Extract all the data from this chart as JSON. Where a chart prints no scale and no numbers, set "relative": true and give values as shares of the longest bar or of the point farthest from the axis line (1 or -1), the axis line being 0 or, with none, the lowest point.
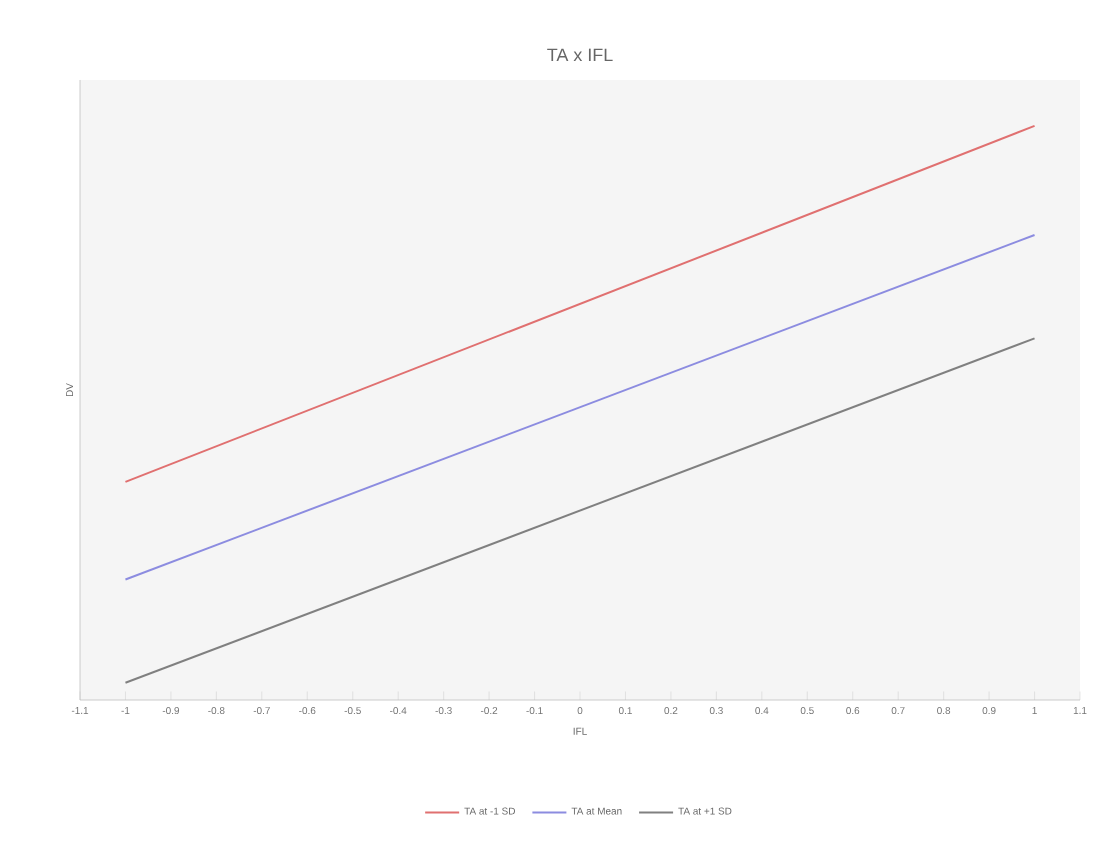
{
  "chart_data": {
    "type": "line",
    "title": "TA x IFL",
    "xlabel": "IFL",
    "ylabel": "DV",
    "relative": true,
    "x": [
      -1,
      1
    ],
    "xlim": [
      -1.1,
      1.1
    ],
    "xticks": [
      -1.1,
      -1,
      -0.9,
      -0.8,
      -0.7,
      -0.6,
      -0.5,
      -0.4,
      -0.3,
      -0.2,
      -0.1,
      0,
      0.1,
      0.2,
      0.3,
      0.4,
      0.5,
      0.6,
      0.7,
      0.8,
      0.9,
      1,
      1.1
    ],
    "series": [
      {
        "name": "TA at -1 SD",
        "color": "#e07070",
        "values": [
          0.38,
          1.0
        ]
      },
      {
        "name": "TA at Mean",
        "color": "#8c8ce0",
        "values": [
          0.21,
          0.81
        ]
      },
      {
        "name": "TA at +1 SD",
        "color": "#808080",
        "values": [
          0.03,
          0.63
        ]
      }
    ],
    "legend": "bottom",
    "marker": "none",
    "line_style": "solid",
    "grid": false
  }
}
